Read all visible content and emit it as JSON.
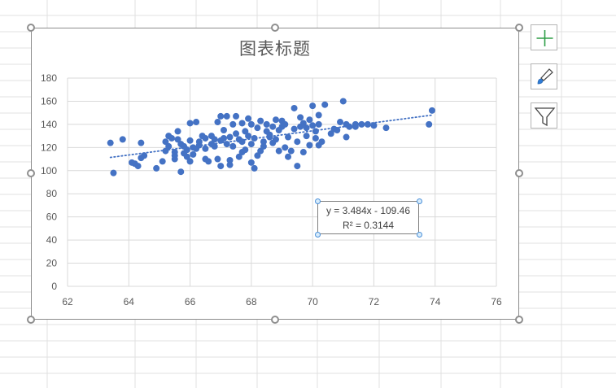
{
  "chart_data": {
    "type": "scatter",
    "title": "图表标题",
    "xlabel": "",
    "ylabel": "",
    "xlim": [
      62,
      76
    ],
    "ylim": [
      0,
      180
    ],
    "x_ticks": [
      "62",
      "64",
      "66",
      "68",
      "70",
      "72",
      "74",
      "76"
    ],
    "y_ticks": [
      "0",
      "20",
      "40",
      "60",
      "80",
      "100",
      "120",
      "140",
      "160",
      "180"
    ],
    "grid": "horizontal",
    "marker_color": "#4472c4",
    "trendline": {
      "type": "linear",
      "slope": 3.484,
      "intercept": -109.46,
      "equation": "y = 3.484x - 109.46",
      "r_squared": "R² = 0.3144",
      "style": "dotted",
      "color": "#4472c4"
    },
    "series": [
      {
        "points": [
          [
            63.4,
            124
          ],
          [
            63.5,
            98
          ],
          [
            63.8,
            127
          ],
          [
            64.1,
            107
          ],
          [
            64.2,
            106
          ],
          [
            64.3,
            104
          ],
          [
            64.4,
            124
          ],
          [
            64.4,
            111
          ],
          [
            64.5,
            113
          ],
          [
            64.9,
            102
          ],
          [
            65.1,
            108
          ],
          [
            65.2,
            117
          ],
          [
            65.2,
            125
          ],
          [
            65.3,
            130
          ],
          [
            65.3,
            121
          ],
          [
            65.4,
            128
          ],
          [
            65.5,
            113
          ],
          [
            65.5,
            116
          ],
          [
            65.5,
            110
          ],
          [
            65.6,
            134
          ],
          [
            65.6,
            127
          ],
          [
            65.7,
            99
          ],
          [
            65.7,
            123
          ],
          [
            65.8,
            115
          ],
          [
            65.8,
            121
          ],
          [
            65.9,
            118
          ],
          [
            65.9,
            112
          ],
          [
            66.0,
            126
          ],
          [
            66.0,
            141
          ],
          [
            66.0,
            108
          ],
          [
            66.1,
            114
          ],
          [
            66.1,
            120
          ],
          [
            66.2,
            119
          ],
          [
            66.2,
            142
          ],
          [
            66.3,
            125
          ],
          [
            66.3,
            122
          ],
          [
            66.4,
            130
          ],
          [
            66.5,
            119
          ],
          [
            66.5,
            110
          ],
          [
            66.5,
            128
          ],
          [
            66.6,
            108
          ],
          [
            66.7,
            123
          ],
          [
            66.7,
            130
          ],
          [
            66.8,
            127
          ],
          [
            66.8,
            121
          ],
          [
            66.9,
            110
          ],
          [
            66.9,
            142
          ],
          [
            67.0,
            147
          ],
          [
            67.0,
            104
          ],
          [
            67.0,
            126
          ],
          [
            67.1,
            128
          ],
          [
            67.1,
            135
          ],
          [
            67.2,
            147
          ],
          [
            67.2,
            123
          ],
          [
            67.3,
            109
          ],
          [
            67.3,
            105
          ],
          [
            67.3,
            129
          ],
          [
            67.4,
            140
          ],
          [
            67.4,
            121
          ],
          [
            67.5,
            147
          ],
          [
            67.5,
            132
          ],
          [
            67.6,
            127
          ],
          [
            67.6,
            112
          ],
          [
            67.7,
            116
          ],
          [
            67.7,
            141
          ],
          [
            67.7,
            125
          ],
          [
            67.8,
            134
          ],
          [
            67.8,
            118
          ],
          [
            67.9,
            145
          ],
          [
            67.9,
            130
          ],
          [
            68.0,
            140
          ],
          [
            68.0,
            107
          ],
          [
            68.0,
            123
          ],
          [
            68.1,
            128
          ],
          [
            68.1,
            102
          ],
          [
            68.2,
            137
          ],
          [
            68.2,
            113
          ],
          [
            68.3,
            117
          ],
          [
            68.3,
            143
          ],
          [
            68.4,
            125
          ],
          [
            68.4,
            121
          ],
          [
            68.5,
            134
          ],
          [
            68.5,
            140
          ],
          [
            68.6,
            129
          ],
          [
            68.6,
            131
          ],
          [
            68.7,
            138
          ],
          [
            68.7,
            124
          ],
          [
            68.8,
            127
          ],
          [
            68.8,
            144
          ],
          [
            68.9,
            135
          ],
          [
            68.9,
            117
          ],
          [
            69.0,
            138
          ],
          [
            69.0,
            143
          ],
          [
            69.1,
            120
          ],
          [
            69.1,
            140
          ],
          [
            69.2,
            112
          ],
          [
            69.2,
            129
          ],
          [
            69.3,
            117
          ],
          [
            69.4,
            154
          ],
          [
            69.4,
            136
          ],
          [
            69.5,
            104
          ],
          [
            69.5,
            125
          ],
          [
            69.6,
            146
          ],
          [
            69.6,
            138
          ],
          [
            69.7,
            116
          ],
          [
            69.7,
            141
          ],
          [
            69.8,
            130
          ],
          [
            69.8,
            137
          ],
          [
            69.9,
            144
          ],
          [
            69.9,
            122
          ],
          [
            70.0,
            156
          ],
          [
            70.0,
            139
          ],
          [
            70.1,
            128
          ],
          [
            70.1,
            134
          ],
          [
            70.2,
            148
          ],
          [
            70.2,
            122
          ],
          [
            70.2,
            140
          ],
          [
            70.3,
            125
          ],
          [
            70.4,
            157
          ],
          [
            70.6,
            132
          ],
          [
            70.7,
            136
          ],
          [
            70.8,
            135
          ],
          [
            70.9,
            142
          ],
          [
            71.0,
            160
          ],
          [
            71.1,
            140
          ],
          [
            71.1,
            129
          ],
          [
            71.2,
            138
          ],
          [
            71.4,
            138
          ],
          [
            71.4,
            140
          ],
          [
            71.6,
            140
          ],
          [
            71.8,
            140
          ],
          [
            72.0,
            139
          ],
          [
            72.4,
            137
          ],
          [
            73.8,
            140
          ],
          [
            73.9,
            152
          ]
        ]
      }
    ]
  },
  "toolbar": {
    "add_element_icon": "plus-icon",
    "styles_icon": "paintbrush-icon",
    "filter_icon": "funnel-icon"
  },
  "colors": {
    "grid": "#d9d9d9",
    "sheet_grid": "#e1e1e1",
    "text": "#595959"
  }
}
